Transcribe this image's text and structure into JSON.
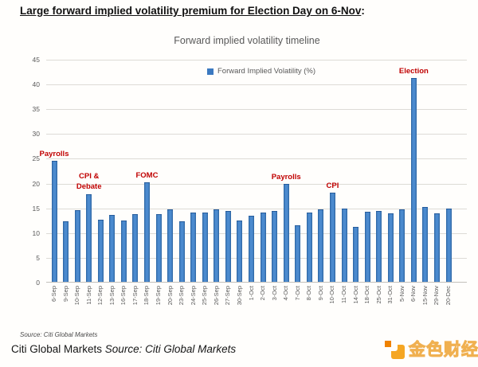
{
  "page": {
    "heading": "Large forward implied volatility premium for Election Day on 6-Nov",
    "heading_suffix": ":",
    "source_note": "Source: Citi Global Markets",
    "caption_normal": "Citi Global Markets ",
    "caption_italic": "Source: Citi Global Markets",
    "logo_text": "金色财经",
    "logo_icon": "jinse-logo-icon"
  },
  "chart_data": {
    "type": "bar",
    "title": "Forward implied volatility timeline",
    "legend": "Forward Implied Volatility (%)",
    "legend_position": "top-center-inside",
    "xlabel": "",
    "ylabel": "",
    "ylim": [
      0,
      45
    ],
    "ytick_step": 5,
    "grid": true,
    "bar_color": "#3b79c0",
    "bar_border_color": "#265c9c",
    "annotation_color": "#c00000",
    "categories": [
      "6-Sep",
      "9-Sep",
      "10-Sep",
      "11-Sep",
      "12-Sep",
      "13-Sep",
      "16-Sep",
      "17-Sep",
      "18-Sep",
      "19-Sep",
      "20-Sep",
      "23-Sep",
      "24-Sep",
      "25-Sep",
      "26-Sep",
      "27-Sep",
      "30-Sep",
      "1-Oct",
      "2-Oct",
      "3-Oct",
      "4-Oct",
      "7-Oct",
      "8-Oct",
      "9-Oct",
      "10-Oct",
      "11-Oct",
      "14-Oct",
      "18-Oct",
      "25-Oct",
      "31-Oct",
      "5-Nov",
      "6-Nov",
      "15-Nov",
      "29-Nov",
      "20-Dec"
    ],
    "values": [
      24.2,
      12.0,
      14.3,
      17.6,
      12.4,
      13.4,
      12.2,
      13.5,
      20.0,
      13.5,
      14.5,
      12.1,
      13.8,
      13.9,
      14.4,
      14.1,
      12.2,
      13.2,
      13.8,
      14.1,
      19.6,
      11.2,
      13.9,
      14.5,
      17.9,
      14.6,
      10.9,
      14.0,
      14.1,
      13.6,
      14.4,
      41.0,
      14.9,
      13.7,
      14.6
    ],
    "annotations": [
      {
        "category": "6-Sep",
        "index": 0,
        "lines": [
          "Payrolls"
        ]
      },
      {
        "category": "11-Sep",
        "index": 3,
        "lines": [
          "CPI &",
          "Debate"
        ]
      },
      {
        "category": "18-Sep",
        "index": 8,
        "lines": [
          "FOMC"
        ]
      },
      {
        "category": "4-Oct",
        "index": 20,
        "lines": [
          "Payrolls"
        ]
      },
      {
        "category": "10-Oct",
        "index": 24,
        "lines": [
          "CPI"
        ]
      },
      {
        "category": "6-Nov",
        "index": 31,
        "lines": [
          "Election"
        ]
      }
    ]
  }
}
